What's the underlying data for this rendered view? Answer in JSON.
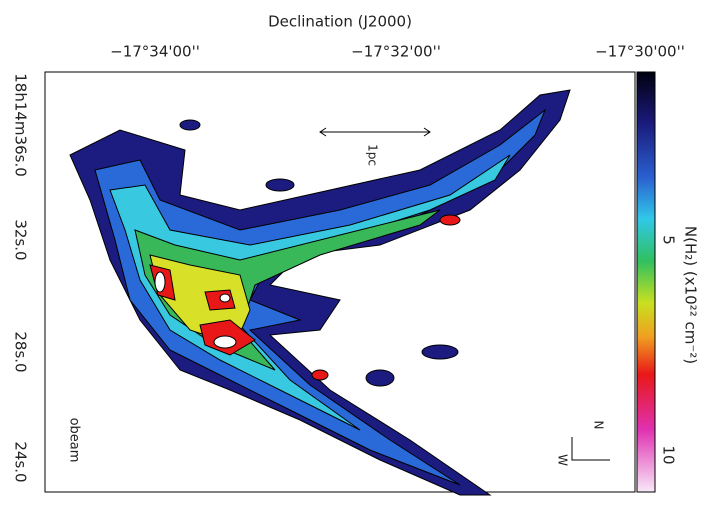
{
  "header": {
    "title": "Declination (J2000)"
  },
  "top_ticks": [
    "−17°34'00''",
    "−17°32'00''",
    "−17°30'00''"
  ],
  "left_ticks": [
    "18h14m36s.0",
    "32s.0",
    "28s.0",
    "24s.0"
  ],
  "colorbar": {
    "label": "N(H₂) (x10²² cm⁻²)",
    "ticks": [
      "5",
      "10"
    ]
  },
  "annotations": {
    "scale": "1pc",
    "beam": "obeam",
    "north": "N",
    "west": "W"
  }
}
